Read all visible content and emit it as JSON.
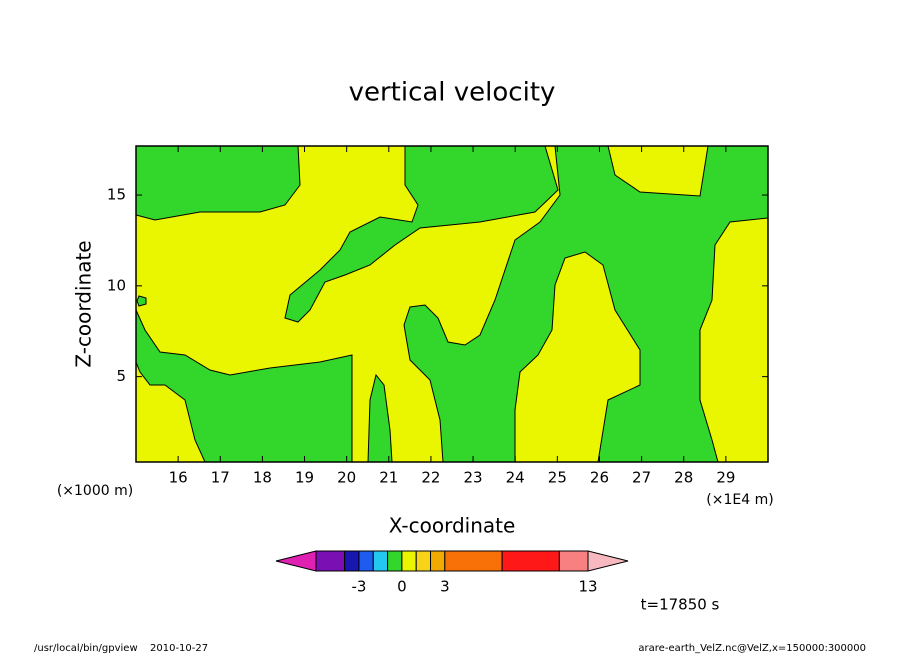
{
  "chart_data": {
    "type": "contour",
    "title": "vertical velocity",
    "xlabel": "X-coordinate",
    "ylabel": "Z-coordinate",
    "xunit": "(×1E4 m)",
    "yunit": "(×1000 m)",
    "xlim": [
      15,
      30
    ],
    "xticks": [
      16,
      17,
      18,
      19,
      20,
      21,
      22,
      23,
      24,
      25,
      26,
      27,
      28,
      29
    ],
    "ylim": [
      0.3,
      17.7
    ],
    "yticks": [
      5,
      10,
      15
    ],
    "colorbar": {
      "colors": [
        "#e020b0",
        "#7a10b4",
        "#1818b0",
        "#1e5cf0",
        "#22c8f0",
        "#33d62a",
        "#eaf500",
        "#f8d418",
        "#f0aa00",
        "#f87008",
        "#ff1818",
        "#f88080",
        "#f8b8c0"
      ],
      "levels": [
        -6,
        -4,
        -3,
        -2,
        -1,
        0,
        1,
        2,
        3,
        7,
        11,
        13
      ],
      "ticks": [
        -3,
        0,
        3,
        13
      ]
    },
    "time_label": "t=17850 s",
    "footer_left": [
      "/usr/local/bin/gpview",
      "2010-10-27"
    ],
    "footer_right": "arare-earth_VelZ.nc@VelZ,x=150000:300000"
  }
}
